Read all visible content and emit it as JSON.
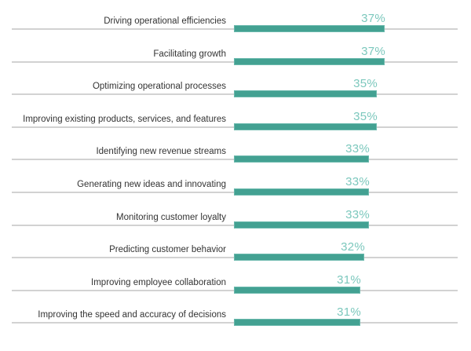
{
  "chart_data": {
    "type": "bar",
    "orientation": "horizontal",
    "title": "",
    "xlabel": "",
    "ylabel": "",
    "xlim": [
      0,
      100
    ],
    "grid": false,
    "legend": "none",
    "colors": {
      "bar": "#43a192",
      "value_label": "#7cc8bd",
      "track": "#d2d2d2"
    },
    "categories": [
      "Driving operational efficiencies",
      "Facilitating growth",
      "Optimizing operational processes",
      "Improving existing products, services, and features",
      "Identifying new revenue streams",
      "Generating new ideas and innovating",
      "Monitoring customer loyalty",
      "Predicting customer behavior",
      "Improving employee collaboration",
      "Improving the speed and accuracy of decisions"
    ],
    "values": [
      37,
      37,
      35,
      35,
      33,
      33,
      33,
      32,
      31,
      31
    ],
    "value_labels": [
      "37%",
      "37%",
      "35%",
      "35%",
      "33%",
      "33%",
      "33%",
      "32%",
      "31%",
      "31%"
    ]
  }
}
